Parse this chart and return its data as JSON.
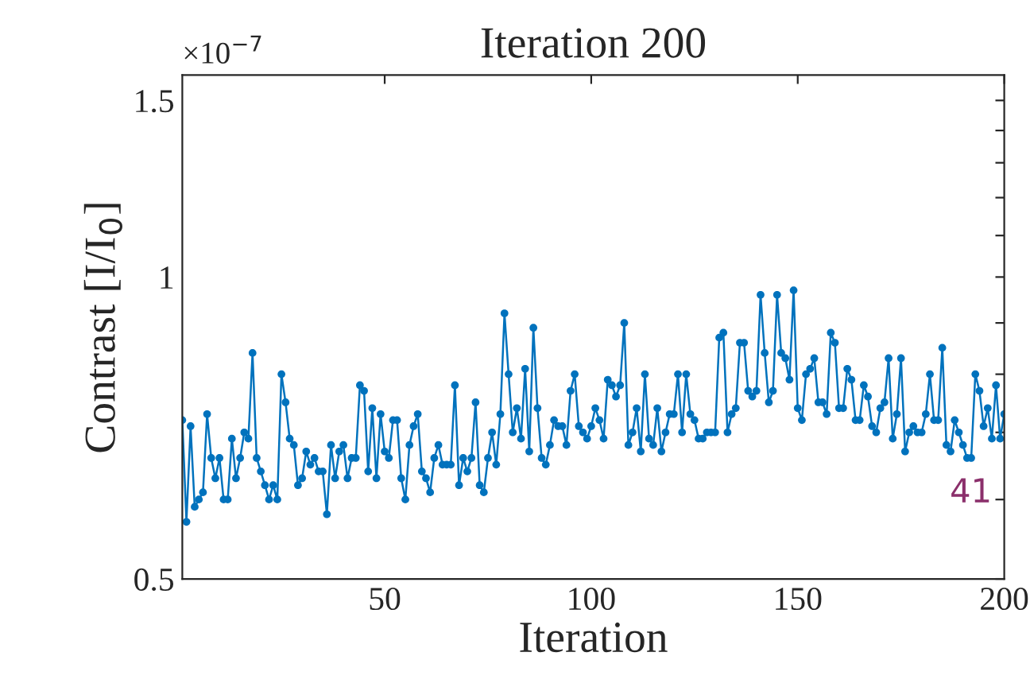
{
  "chart_data": {
    "type": "line",
    "title": "Iteration 200",
    "xlabel": "Iteration",
    "ylabel": "Contrast [I/I$_{0}$]",
    "annotations": [
      "×10$^{−7}$",
      "41"
    ],
    "log": "y",
    "grid": false,
    "marker": "circle",
    "line_style": "solid",
    "xlim": [
      1,
      200
    ],
    "xticks": [
      50,
      100,
      150,
      200
    ],
    "ylim": [
      0.5,
      1.59
    ],
    "yticks": [
      0.5,
      {
        "value": 0.6,
        "label": null
      },
      {
        "value": 0.7,
        "label": null
      },
      {
        "value": 0.8,
        "label": null
      },
      {
        "value": 0.9,
        "label": null
      },
      1,
      {
        "value": 1.1,
        "label": null
      },
      {
        "value": 1.2,
        "label": null
      },
      {
        "value": 1.3,
        "label": null
      },
      {
        "value": 1.4,
        "label": null
      },
      1.5
    ],
    "x": [
      1,
      2,
      3,
      4,
      5,
      6,
      7,
      8,
      9,
      10,
      11,
      12,
      13,
      14,
      15,
      16,
      17,
      18,
      19,
      20,
      21,
      22,
      23,
      24,
      25,
      26,
      27,
      28,
      29,
      30,
      31,
      32,
      33,
      34,
      35,
      36,
      37,
      38,
      39,
      40,
      41,
      42,
      43,
      44,
      45,
      46,
      47,
      48,
      49,
      50,
      51,
      52,
      53,
      54,
      55,
      56,
      57,
      58,
      59,
      60,
      61,
      62,
      63,
      64,
      65,
      66,
      67,
      68,
      69,
      70,
      71,
      72,
      73,
      74,
      75,
      76,
      77,
      78,
      79,
      80,
      81,
      82,
      83,
      84,
      85,
      86,
      87,
      88,
      89,
      90,
      91,
      92,
      93,
      94,
      95,
      96,
      97,
      98,
      99,
      100,
      101,
      102,
      103,
      104,
      105,
      106,
      107,
      108,
      109,
      110,
      111,
      112,
      113,
      114,
      115,
      116,
      117,
      118,
      119,
      120,
      121,
      122,
      123,
      124,
      125,
      126,
      127,
      128,
      129,
      130,
      131,
      132,
      133,
      134,
      135,
      136,
      137,
      138,
      139,
      140,
      141,
      142,
      143,
      144,
      145,
      146,
      147,
      148,
      149,
      150,
      151,
      152,
      153,
      154,
      155,
      156,
      157,
      158,
      159,
      160,
      161,
      162,
      163,
      164,
      165,
      166,
      167,
      168,
      169,
      170,
      171,
      172,
      173,
      174,
      175,
      176,
      177,
      178,
      179,
      180,
      181,
      182,
      183,
      184,
      185,
      186,
      187,
      188,
      189,
      190,
      191,
      192,
      193,
      194,
      195,
      196,
      197,
      198,
      199,
      200
    ],
    "series": [
      {
        "color": "#0072bd",
        "values": [
          0.72,
          0.57,
          0.71,
          0.59,
          0.6,
          0.61,
          0.73,
          0.66,
          0.63,
          0.66,
          0.6,
          0.6,
          0.69,
          0.63,
          0.66,
          0.7,
          0.69,
          0.84,
          0.66,
          0.64,
          0.62,
          0.6,
          0.62,
          0.6,
          0.8,
          0.75,
          0.69,
          0.68,
          0.62,
          0.63,
          0.67,
          0.65,
          0.66,
          0.64,
          0.64,
          0.58,
          0.68,
          0.63,
          0.67,
          0.68,
          0.63,
          0.66,
          0.66,
          0.78,
          0.77,
          0.64,
          0.74,
          0.63,
          0.73,
          0.67,
          0.66,
          0.72,
          0.72,
          0.63,
          0.6,
          0.68,
          0.71,
          0.73,
          0.64,
          0.63,
          0.61,
          0.66,
          0.68,
          0.65,
          0.65,
          0.65,
          0.78,
          0.62,
          0.66,
          0.64,
          0.66,
          0.75,
          0.62,
          0.61,
          0.66,
          0.7,
          0.65,
          0.73,
          0.92,
          0.8,
          0.7,
          0.74,
          0.69,
          0.81,
          0.67,
          0.89,
          0.74,
          0.66,
          0.65,
          0.68,
          0.72,
          0.71,
          0.71,
          0.68,
          0.77,
          0.8,
          0.71,
          0.7,
          0.69,
          0.71,
          0.74,
          0.72,
          0.69,
          0.79,
          0.78,
          0.76,
          0.78,
          0.9,
          0.68,
          0.7,
          0.74,
          0.67,
          0.8,
          0.69,
          0.68,
          0.74,
          0.67,
          0.7,
          0.73,
          0.73,
          0.8,
          0.7,
          0.8,
          0.73,
          0.72,
          0.69,
          0.69,
          0.7,
          0.7,
          0.7,
          0.87,
          0.88,
          0.7,
          0.73,
          0.74,
          0.86,
          0.86,
          0.77,
          0.76,
          0.77,
          0.96,
          0.84,
          0.75,
          0.77,
          0.96,
          0.84,
          0.83,
          0.79,
          0.97,
          0.74,
          0.72,
          0.8,
          0.81,
          0.83,
          0.75,
          0.75,
          0.73,
          0.88,
          0.86,
          0.74,
          0.74,
          0.81,
          0.79,
          0.72,
          0.72,
          0.78,
          0.76,
          0.71,
          0.7,
          0.74,
          0.75,
          0.83,
          0.69,
          0.73,
          0.83,
          0.67,
          0.7,
          0.71,
          0.7,
          0.7,
          0.73,
          0.8,
          0.72,
          0.72,
          0.85,
          0.68,
          0.67,
          0.72,
          0.7,
          0.68,
          0.66,
          0.66,
          0.8,
          0.77,
          0.71,
          0.74,
          0.69,
          0.78,
          0.69,
          0.73
        ]
      }
    ]
  }
}
